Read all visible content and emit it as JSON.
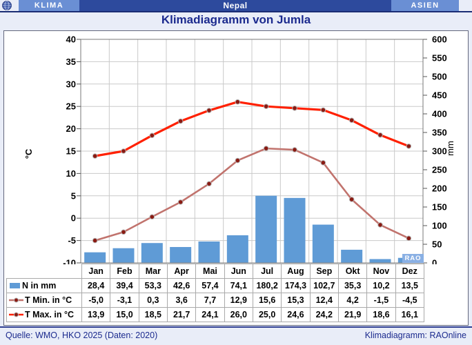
{
  "header": {
    "left": "KLIMA",
    "center": "Nepal",
    "right": "ASIEN"
  },
  "title": "Klimadiagramm von Jumla",
  "watermark": "RAO",
  "chart_data": {
    "type": "bar+line",
    "categories": [
      "Jan",
      "Feb",
      "Mar",
      "Apr",
      "Mai",
      "Jun",
      "Jul",
      "Aug",
      "Sep",
      "Okt",
      "Nov",
      "Dez"
    ],
    "series": [
      {
        "name": "N in mm",
        "type": "bar",
        "color": "#5F9BD6",
        "values": [
          28.4,
          39.4,
          53.3,
          42.6,
          57.4,
          74.1,
          180.2,
          174.3,
          102.7,
          35.3,
          10.2,
          13.5
        ]
      },
      {
        "name": "T Min. in °C",
        "type": "line",
        "color": "#C1736D",
        "values": [
          -5.0,
          -3.1,
          0.3,
          3.6,
          7.7,
          12.9,
          15.6,
          15.3,
          12.4,
          4.2,
          -1.5,
          -4.5
        ]
      },
      {
        "name": "T Max. in °C",
        "type": "line",
        "color": "#FF2000",
        "values": [
          13.9,
          15.0,
          18.5,
          21.7,
          24.1,
          26.0,
          25.0,
          24.6,
          24.2,
          21.9,
          18.6,
          16.1
        ]
      }
    ],
    "left_axis": {
      "label": "°C",
      "min": -10,
      "max": 40,
      "ticks": [
        40,
        35,
        30,
        25,
        20,
        15,
        10,
        5,
        0,
        -5,
        -10
      ]
    },
    "right_axis": {
      "label": "mm",
      "min": 0,
      "max": 600,
      "ticks": [
        600,
        550,
        500,
        450,
        400,
        350,
        300,
        250,
        200,
        150,
        100,
        50,
        0
      ]
    },
    "marker_color": "#8A1A12",
    "grid": true,
    "legend_position": "table-left"
  },
  "footer": {
    "left": "Quelle: WMO, HKO 2025 (Daten: 2020)",
    "right": "Klimadiagramm: RAOnline"
  }
}
